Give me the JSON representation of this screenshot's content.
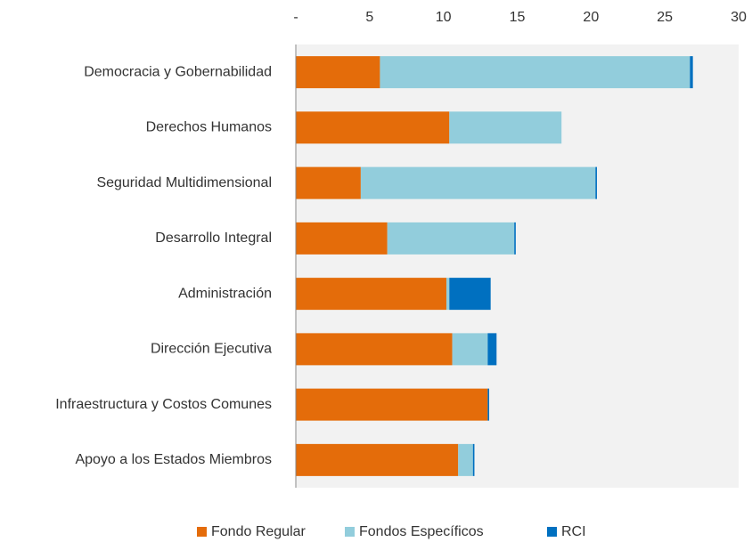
{
  "chart_data": {
    "type": "stacked_barh",
    "categories": [
      "Democracia  y Gobernabilidad",
      "Derechos  Humanos",
      "Seguridad  Multidimensional",
      "Desarrollo  Integral",
      "Administración",
      "Dirección  Ejecutiva",
      "Infraestructura  y Costos  Comunes",
      "Apoyo  a los Estados  Miembros"
    ],
    "series": [
      {
        "name": "Fondo  Regular",
        "color": "#e46c0a",
        "values": [
          5.7,
          10.4,
          4.4,
          6.2,
          10.2,
          10.6,
          13.0,
          11.0
        ]
      },
      {
        "name": "Fondos  Específicos",
        "color": "#92cddc",
        "values": [
          21.0,
          7.6,
          15.9,
          8.6,
          0.2,
          2.4,
          0,
          1.0
        ]
      },
      {
        "name": "RCI",
        "color": "#0070c0",
        "values": [
          0.2,
          0,
          0.1,
          0.1,
          2.8,
          0.6,
          0.1,
          0.1
        ]
      }
    ],
    "xlim": [
      0,
      30
    ],
    "xticks": [
      {
        "value": 0,
        "label": "-"
      },
      5,
      10,
      15,
      20,
      25,
      30
    ],
    "legend": "bottom"
  }
}
